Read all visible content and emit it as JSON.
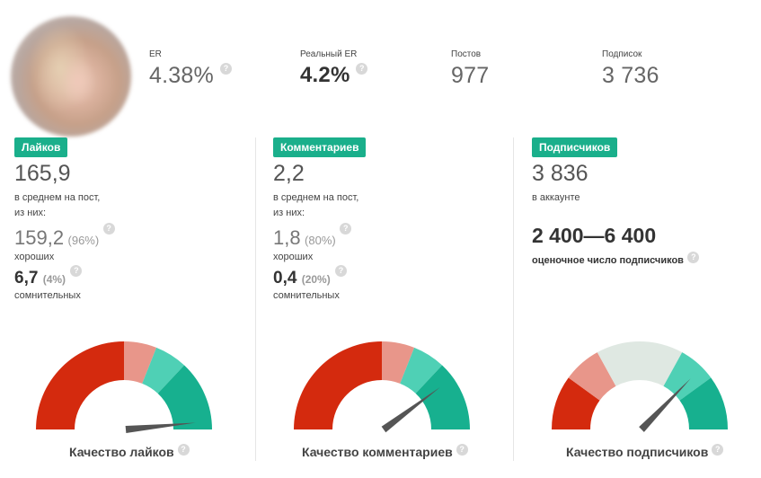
{
  "header": {
    "stats": [
      {
        "label": "ER",
        "value": "4.38%"
      },
      {
        "label": "Реальный ER",
        "value": "4.2%"
      },
      {
        "label": "Постов",
        "value": "977"
      },
      {
        "label": "Подписок",
        "value": "3 736"
      }
    ]
  },
  "help_glyph": "?",
  "likes": {
    "badge": "Лайков",
    "average": "165,9",
    "average_caption_1": "в среднем на пост,",
    "average_caption_2": "из них:",
    "good_value": "159,2",
    "good_pct": "(96%)",
    "good_caption": "хороших",
    "doubtful_value": "6,7",
    "doubtful_pct": "(4%)",
    "doubtful_caption": "сомнительных",
    "quality_title": "Качество лайков",
    "needle_fraction": 0.97
  },
  "comments": {
    "badge": "Комментариев",
    "average": "2,2",
    "average_caption_1": "в среднем на пост,",
    "average_caption_2": "из них:",
    "good_value": "1,8",
    "good_pct": "(80%)",
    "good_caption": "хороших",
    "doubtful_value": "0,4",
    "doubtful_pct": "(20%)",
    "doubtful_caption": "сомнительных",
    "quality_title": "Качество комментариев",
    "needle_fraction": 0.8
  },
  "followers": {
    "badge": "Подписчиков",
    "count": "3 836",
    "count_caption": "в аккаунте",
    "estimate_range": "2 400—6 400",
    "estimate_caption": "оценочное число подписчиков",
    "quality_title": "Качество подписчиков",
    "needle_fraction": 0.75
  },
  "gauge_colors": {
    "red": "#d42a0e",
    "salmon": "#e8968a",
    "light_teal": "#4fd0b5",
    "teal": "#17b08f",
    "pale": "#dfe8e2",
    "needle": "#555555"
  }
}
